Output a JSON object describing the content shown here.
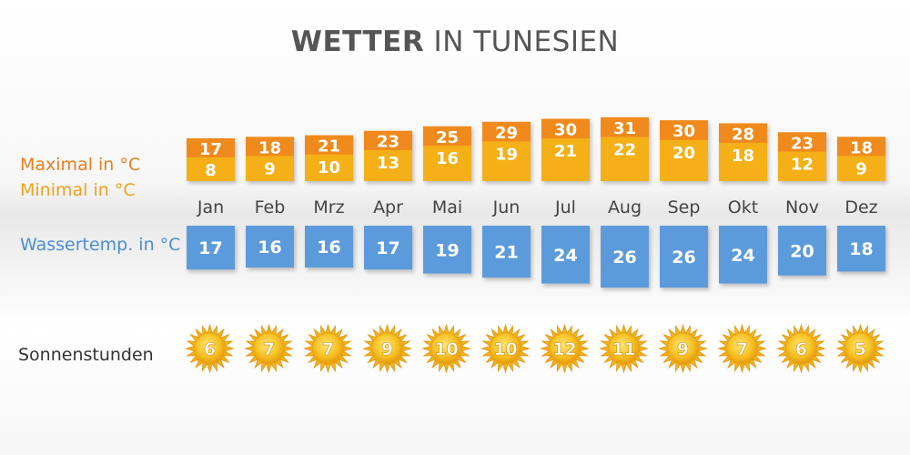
{
  "title": {
    "bold": "WETTER",
    "rest": "IN TUNESIEN"
  },
  "labels": {
    "max": "Maximal in °C",
    "min": "Minimal in °C",
    "water": "Wassertemp. in °C",
    "sun": "Sonnenstunden"
  },
  "colors": {
    "max": "#f08a1c",
    "min": "#f4b014",
    "water": "#5b9bdb",
    "sun": "#f7c325",
    "title": "#555555"
  },
  "chart_data": {
    "type": "table",
    "categories": [
      "Jan",
      "Feb",
      "Mrz",
      "Apr",
      "Mai",
      "Jun",
      "Jul",
      "Aug",
      "Sep",
      "Okt",
      "Nov",
      "Dez"
    ],
    "series": [
      {
        "name": "Maximal in °C",
        "values": [
          17,
          18,
          21,
          23,
          25,
          29,
          30,
          31,
          30,
          28,
          23,
          18
        ]
      },
      {
        "name": "Minimal in °C",
        "values": [
          8,
          9,
          10,
          13,
          16,
          19,
          21,
          22,
          20,
          18,
          12,
          9
        ]
      },
      {
        "name": "Wassertemp. in °C",
        "values": [
          17,
          16,
          16,
          17,
          19,
          21,
          24,
          26,
          26,
          24,
          20,
          18
        ]
      },
      {
        "name": "Sonnenstunden",
        "values": [
          6,
          7,
          7,
          9,
          10,
          10,
          12,
          11,
          9,
          7,
          6,
          5
        ]
      }
    ]
  }
}
